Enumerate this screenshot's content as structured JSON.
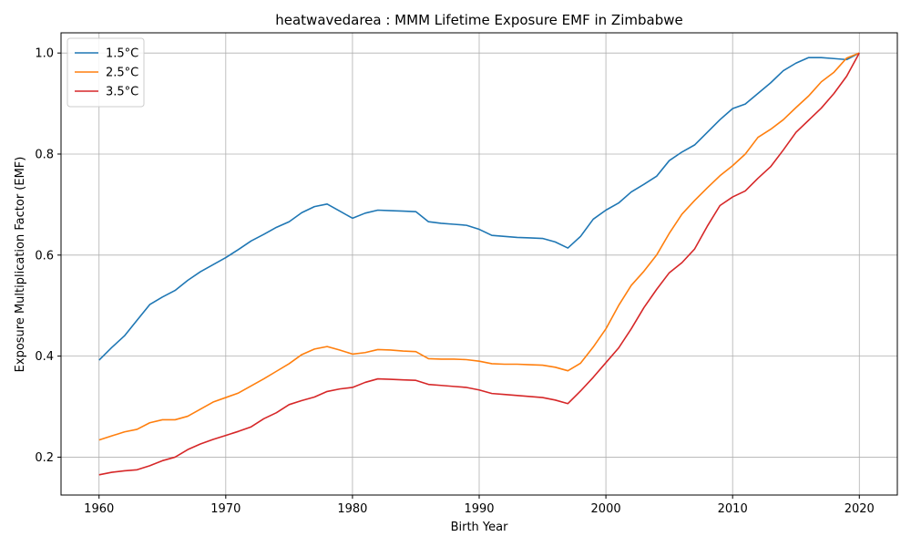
{
  "chart_data": {
    "type": "line",
    "title": "heatwavedarea : MMM Lifetime Exposure EMF in Zimbabwe",
    "xlabel": "Birth Year",
    "ylabel": "Exposure Multiplication Factor (EMF)",
    "xlim": [
      1957,
      2023
    ],
    "ylim": [
      0.125,
      1.04
    ],
    "xticks": [
      1960,
      1970,
      1980,
      1990,
      2000,
      2010,
      2020
    ],
    "yticks": [
      0.2,
      0.4,
      0.6,
      0.8,
      1.0
    ],
    "xtick_labels": [
      "1960",
      "1970",
      "1980",
      "1990",
      "2000",
      "2010",
      "2020"
    ],
    "ytick_labels": [
      "0.2",
      "0.4",
      "0.6",
      "0.8",
      "1.0"
    ],
    "grid": true,
    "legend_position": "top-left",
    "x": [
      1960,
      1961,
      1962,
      1963,
      1964,
      1965,
      1966,
      1967,
      1968,
      1969,
      1970,
      1971,
      1972,
      1973,
      1974,
      1975,
      1976,
      1977,
      1978,
      1979,
      1980,
      1981,
      1982,
      1983,
      1984,
      1985,
      1986,
      1987,
      1988,
      1989,
      1990,
      1991,
      1992,
      1993,
      1994,
      1995,
      1996,
      1997,
      1998,
      1999,
      2000,
      2001,
      2002,
      2003,
      2004,
      2005,
      2006,
      2007,
      2008,
      2009,
      2010,
      2011,
      2012,
      2013,
      2014,
      2015,
      2016,
      2017,
      2018,
      2019,
      2020
    ],
    "series": [
      {
        "name": "1.5°C",
        "color": "#1f77b4",
        "values": [
          0.392,
          0.417,
          0.44,
          0.471,
          0.502,
          0.517,
          0.53,
          0.55,
          0.567,
          0.581,
          0.595,
          0.611,
          0.628,
          0.641,
          0.655,
          0.666,
          0.684,
          0.696,
          0.701,
          0.687,
          0.673,
          0.683,
          0.689,
          0.688,
          0.687,
          0.686,
          0.666,
          0.663,
          0.661,
          0.659,
          0.651,
          0.639,
          0.637,
          0.635,
          0.634,
          0.633,
          0.626,
          0.614,
          0.637,
          0.671,
          0.689,
          0.703,
          0.725,
          0.74,
          0.756,
          0.787,
          0.804,
          0.818,
          0.843,
          0.868,
          0.89,
          0.899,
          0.92,
          0.941,
          0.965,
          0.98,
          0.991,
          0.991,
          0.989,
          0.987,
          1.0
        ]
      },
      {
        "name": "2.5°C",
        "color": "#ff7f0e",
        "values": [
          0.234,
          0.242,
          0.25,
          0.255,
          0.268,
          0.274,
          0.274,
          0.281,
          0.295,
          0.309,
          0.318,
          0.327,
          0.341,
          0.355,
          0.37,
          0.385,
          0.403,
          0.414,
          0.419,
          0.412,
          0.404,
          0.407,
          0.413,
          0.412,
          0.41,
          0.409,
          0.395,
          0.394,
          0.394,
          0.393,
          0.39,
          0.385,
          0.384,
          0.384,
          0.383,
          0.382,
          0.378,
          0.371,
          0.386,
          0.418,
          0.454,
          0.5,
          0.54,
          0.568,
          0.6,
          0.643,
          0.681,
          0.708,
          0.733,
          0.757,
          0.777,
          0.8,
          0.833,
          0.849,
          0.868,
          0.892,
          0.915,
          0.943,
          0.962,
          0.99,
          1.0
        ]
      },
      {
        "name": "3.5°C",
        "color": "#d62728",
        "values": [
          0.165,
          0.17,
          0.173,
          0.175,
          0.183,
          0.193,
          0.2,
          0.215,
          0.226,
          0.235,
          0.243,
          0.251,
          0.26,
          0.276,
          0.288,
          0.304,
          0.312,
          0.319,
          0.33,
          0.335,
          0.338,
          0.348,
          0.355,
          0.354,
          0.353,
          0.352,
          0.344,
          0.342,
          0.34,
          0.338,
          0.333,
          0.326,
          0.324,
          0.322,
          0.32,
          0.318,
          0.313,
          0.306,
          0.331,
          0.358,
          0.387,
          0.416,
          0.454,
          0.496,
          0.532,
          0.565,
          0.585,
          0.612,
          0.657,
          0.698,
          0.715,
          0.727,
          0.752,
          0.775,
          0.808,
          0.843,
          0.867,
          0.891,
          0.92,
          0.954,
          1.0
        ]
      }
    ]
  }
}
